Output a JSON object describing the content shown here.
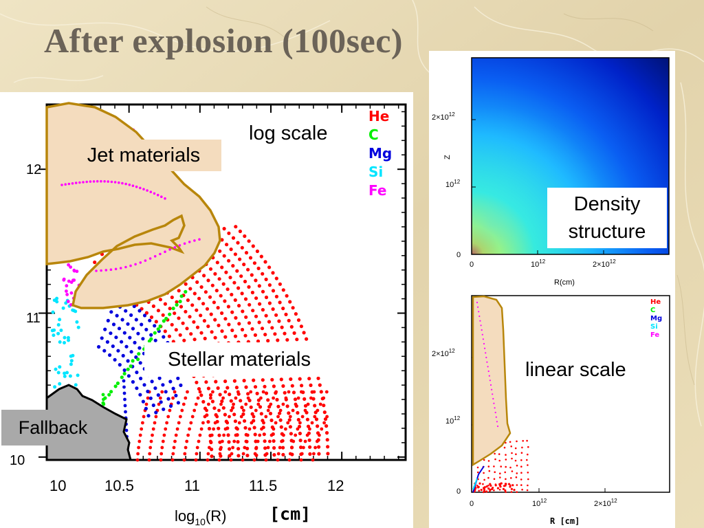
{
  "slide": {
    "title": "After explosion (100sec)",
    "colors": {
      "background": "#e6d9b5",
      "title": "#6b6358",
      "jet_fill": "#f4dcbe",
      "jet_outline": "#b8860b",
      "fallback_fill": "#a9a9a9"
    }
  },
  "callouts": {
    "jet_materials": "Jet materials",
    "log_scale": "log scale",
    "stellar_materials": "Stellar materials",
    "fallback": "Fallback",
    "density_structure_line1": "Density",
    "density_structure_line2": "structure",
    "linear_scale": "linear scale"
  },
  "chart_data": [
    {
      "id": "composition-log",
      "type": "scatter",
      "title": "",
      "xlabel": "log10(R)",
      "xunit": "[cm]",
      "ylabel": "",
      "x_ticks": [
        "10",
        "10.5",
        "11",
        "11.5",
        "12"
      ],
      "y_ticks": [
        "10",
        "11",
        "12"
      ],
      "xlim": [
        9.92,
        12.45
      ],
      "ylim": [
        9.98,
        12.45
      ],
      "legend": {
        "placement": "top-right",
        "entries": [
          {
            "label": "He",
            "color": "#ff0000"
          },
          {
            "label": "C",
            "color": "#00ee00"
          },
          {
            "label": "Mg",
            "color": "#0000dd"
          },
          {
            "label": "Si",
            "color": "#00e5ff"
          },
          {
            "label": "Fe",
            "color": "#ff00ff"
          }
        ]
      },
      "series": [
        {
          "name": "He",
          "color": "#ff0000",
          "region": "outer shell, x 10.55–11.9, up to y≈11.5"
        },
        {
          "name": "C",
          "color": "#00ee00",
          "region": "thin band x≈10.35–10.9"
        },
        {
          "name": "Mg",
          "color": "#0000dd",
          "region": "inner band x≈10.1–10.75"
        },
        {
          "name": "Si",
          "color": "#00e5ff",
          "region": "inner edge x≈10.0–10.3"
        },
        {
          "name": "Fe",
          "color": "#ff00ff",
          "region": "along jet, x≈10.0–11.2"
        }
      ]
    },
    {
      "id": "density-structure",
      "type": "heatmap",
      "title": "",
      "xlabel": "R(cm)",
      "ylabel": "Z",
      "x_ticks": [
        "0",
        "10^12",
        "2×10^12"
      ],
      "y_ticks": [
        "0",
        "10^12",
        "2×10^12"
      ],
      "xlim": [
        0,
        2900000000000.0
      ],
      "ylim": [
        0,
        2800000000000.0
      ],
      "colormap": "jet",
      "description_of_values": "highest density near origin, decreasing outward"
    },
    {
      "id": "composition-linear",
      "type": "scatter",
      "title": "",
      "xlabel": "R [cm]",
      "ylabel": "",
      "x_ticks": [
        "0",
        "10^12",
        "2×10^12"
      ],
      "y_ticks": [
        "0",
        "10^12",
        "2×10^12"
      ],
      "xlim": [
        0,
        2900000000000.0
      ],
      "ylim": [
        0,
        2800000000000.0
      ],
      "legend": {
        "placement": "top-right",
        "entries": [
          {
            "label": "He",
            "color": "#ff0000"
          },
          {
            "label": "C",
            "color": "#00ee00"
          },
          {
            "label": "Mg",
            "color": "#0000dd"
          },
          {
            "label": "Si",
            "color": "#00e5ff"
          },
          {
            "label": "Fe",
            "color": "#ff00ff"
          }
        ]
      }
    }
  ],
  "axis_text": {
    "log": {
      "xtick0": "10",
      "xtick1": "10.5",
      "xtick2": "11",
      "xtick3": "11.5",
      "xtick4": "12",
      "ytick0": "10",
      "ytick1": "11",
      "ytick2": "12",
      "xlabel_main": "log",
      "xlabel_sub": "10",
      "xlabel_rest": "(R)",
      "xunit": "[cm]"
    },
    "density": {
      "ytick_2e12_base": "2×10",
      "ytick_2e12_exp": "12",
      "ytick_1e12_base": "10",
      "ytick_1e12_exp": "12",
      "ytick0": "0",
      "xtick0": "0",
      "xtick1_base": "10",
      "xtick1_exp": "12",
      "xtick2_base": "2×10",
      "xtick2_exp": "12",
      "ylabel": "Z",
      "xlabel": "R(cm)"
    },
    "linear": {
      "ytick_2e12_base": "2×10",
      "ytick_2e12_exp": "12",
      "ytick_1e12_base": "10",
      "ytick_1e12_exp": "12",
      "ytick0": "0",
      "xtick0": "0",
      "xtick1_base": "10",
      "xtick1_exp": "12",
      "xtick2_base": "2×10",
      "xtick2_exp": "12",
      "xlabel": "R [cm]"
    }
  }
}
